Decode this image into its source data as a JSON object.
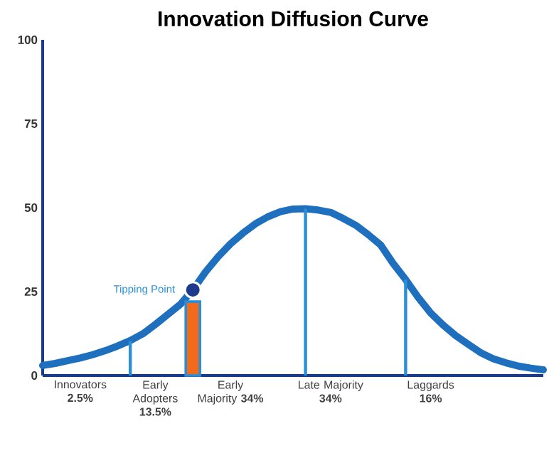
{
  "chart_data": {
    "type": "line",
    "title": "Innovation Diffusion Curve",
    "categories": [
      null,
      null,
      null,
      "Innovators **2.5%**",
      null,
      null,
      null,
      null,
      null,
      "Early Adopters **13.5%**",
      null,
      null,
      null,
      null,
      null,
      "Early Majority **34%**",
      null,
      null,
      null,
      null,
      null,
      null,
      null,
      "Late Majority **34%**",
      null,
      null,
      null,
      null,
      null,
      null,
      null,
      "Laggards **16%**",
      null,
      null,
      null,
      null,
      null,
      null,
      null,
      null,
      null
    ],
    "ylim": [
      0,
      100
    ],
    "yticks": [
      0,
      25,
      50,
      75,
      100
    ],
    "series": [
      {
        "color": "#1f6fbf",
        "values": [
          3.0,
          3.6,
          4.4,
          5.2,
          6.2,
          7.4,
          8.8,
          10.4,
          12.4,
          15.2,
          18.2,
          21.2,
          25.5,
          30.8,
          35.3,
          39.2,
          42.4,
          45.2,
          47.3,
          48.8,
          49.6,
          49.7,
          49.3,
          48.6,
          46.8,
          44.8,
          42.0,
          38.9,
          33.4,
          28.6,
          23.3,
          18.6,
          15.0,
          11.9,
          9.3,
          6.8,
          5.0,
          3.8,
          2.8,
          2.2,
          1.7
        ]
      },
      {
        "type": "bar",
        "color": "#2a8fd6",
        "values": [
          null,
          null,
          null,
          null,
          null,
          null,
          null,
          10.4,
          null,
          null,
          null,
          null,
          null,
          null,
          null,
          null,
          null,
          null,
          null,
          null,
          null,
          49.7,
          null,
          null,
          null,
          null,
          null,
          null,
          null,
          28.6,
          null,
          null,
          null,
          null,
          null,
          null,
          null,
          null,
          null,
          null,
          null
        ]
      },
      {
        "type": "bar",
        "color": "#f26b1d",
        "values": [
          null,
          null,
          null,
          null,
          null,
          null,
          null,
          null,
          null,
          null,
          null,
          null,
          22,
          null,
          null,
          null,
          null,
          null,
          null,
          null,
          null,
          null,
          null,
          null,
          null,
          null,
          null,
          null,
          null,
          null,
          null,
          null,
          null,
          null,
          null,
          null,
          null,
          null,
          null,
          null,
          null
        ]
      },
      {
        "type": "scatter",
        "name": "Tipping Point",
        "color": "#1e3a8c",
        "marker": "circle",
        "values": [
          null,
          null,
          null,
          null,
          null,
          null,
          null,
          null,
          null,
          null,
          null,
          null,
          25.5,
          null,
          null,
          null,
          null,
          null,
          null,
          null,
          null,
          null,
          null,
          null,
          null,
          null,
          null,
          null,
          null,
          null,
          null,
          null,
          null,
          null,
          null,
          null,
          null,
          null,
          null,
          null,
          null
        ]
      }
    ]
  }
}
